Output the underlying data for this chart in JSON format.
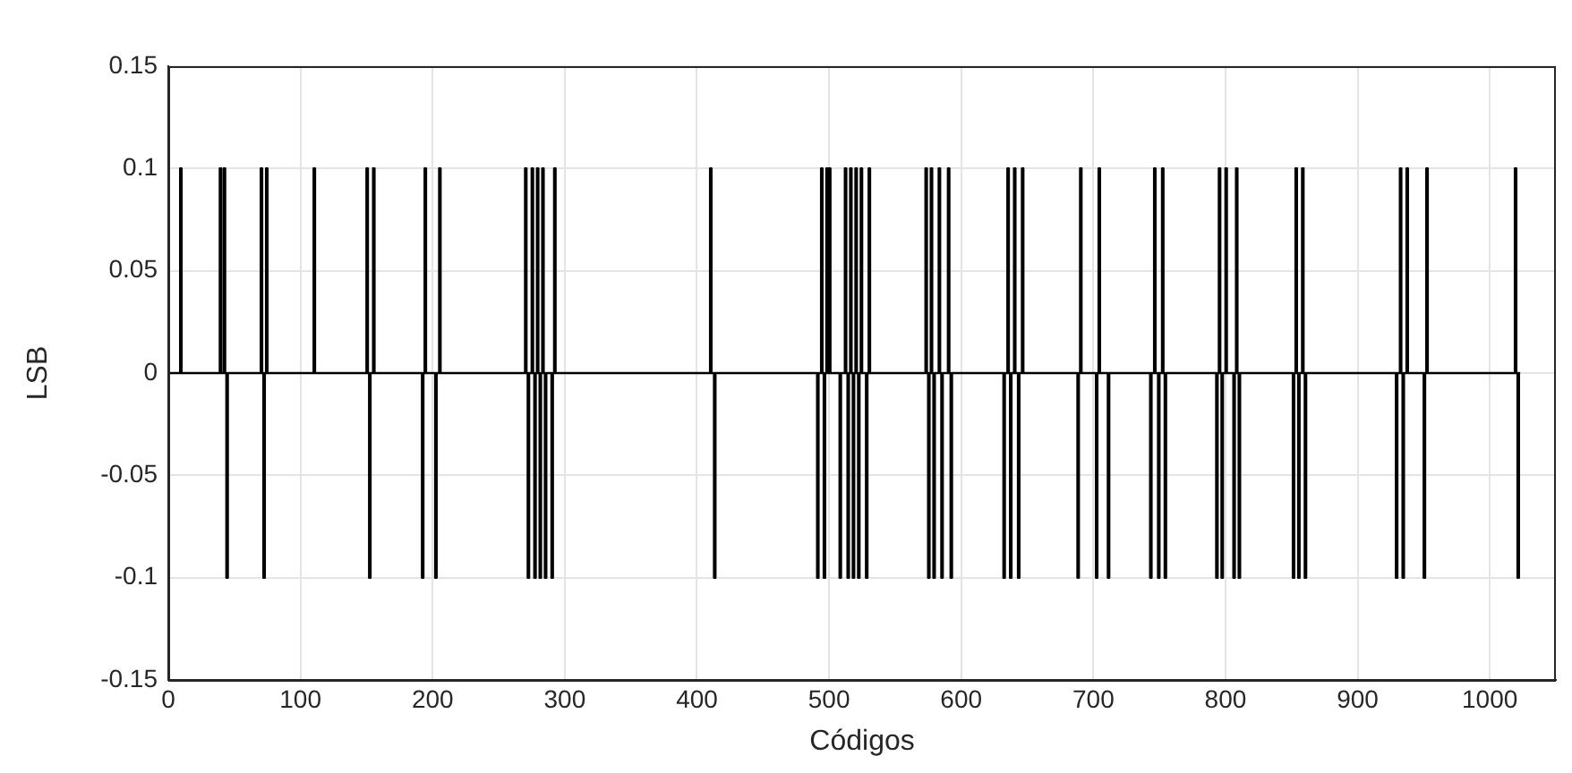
{
  "chart_data": {
    "type": "step",
    "xlabel": "Códigos",
    "ylabel": "LSB",
    "x": [
      0,
      9,
      10,
      39,
      40,
      42,
      43,
      44,
      45,
      70,
      71,
      72,
      73,
      74,
      75,
      110,
      111,
      150,
      151,
      152,
      153,
      155,
      156,
      192,
      193,
      194,
      195,
      202,
      203,
      205,
      206,
      270,
      271,
      272,
      273,
      275,
      276,
      277,
      278,
      279,
      280,
      281,
      282,
      283,
      284,
      285,
      286,
      290,
      291,
      292,
      293,
      410,
      411,
      413,
      414,
      491,
      492,
      494,
      495,
      496,
      497,
      498,
      499,
      500,
      501,
      508,
      509,
      512,
      513,
      514,
      515,
      516,
      517,
      518,
      519,
      520,
      521,
      522,
      523,
      524,
      525,
      528,
      529,
      530,
      531,
      573,
      574,
      575,
      576,
      577,
      578,
      579,
      580,
      583,
      584,
      585,
      586,
      590,
      591,
      592,
      593,
      632,
      633,
      635,
      636,
      637,
      638,
      640,
      641,
      643,
      644,
      646,
      647,
      688,
      689,
      690,
      691,
      702,
      703,
      704,
      705,
      711,
      712,
      743,
      744,
      746,
      747,
      749,
      750,
      752,
      753,
      754,
      755,
      793,
      794,
      795,
      796,
      797,
      798,
      800,
      801,
      806,
      807,
      808,
      809,
      810,
      811,
      851,
      852,
      853,
      854,
      855,
      856,
      858,
      859,
      860,
      861,
      929,
      930,
      932,
      933,
      934,
      935,
      937,
      938,
      950,
      951,
      952,
      953,
      1019,
      1020,
      1021,
      1022,
      1023
    ],
    "series": [
      {
        "color": "#000000",
        "values": [
          0,
          0.1,
          0,
          0.1,
          0,
          0.1,
          0,
          -0.1,
          0,
          0.1,
          0,
          -0.1,
          0,
          0.1,
          0,
          0.1,
          0,
          0.1,
          0,
          -0.1,
          0,
          0.1,
          0,
          -0.1,
          0,
          0.1,
          0,
          -0.1,
          0,
          0.1,
          0,
          0.1,
          0,
          -0.1,
          0,
          0.1,
          0,
          -0.1,
          0,
          0.1,
          0,
          -0.1,
          0,
          0.1,
          0,
          -0.1,
          0,
          -0.1,
          0,
          0.1,
          0,
          0.1,
          0,
          -0.1,
          0,
          -0.1,
          0,
          0.1,
          0,
          -0.1,
          0,
          0.1,
          0,
          0.1,
          0,
          -0.1,
          0,
          0.1,
          0,
          -0.1,
          0,
          0.1,
          0,
          -0.1,
          0,
          0.1,
          0,
          -0.1,
          0,
          0.1,
          0,
          -0.1,
          0,
          0.1,
          0,
          0.1,
          0,
          -0.1,
          0,
          0.1,
          0,
          -0.1,
          0,
          0.1,
          0,
          -0.1,
          0,
          0.1,
          0,
          -0.1,
          0,
          -0.1,
          0,
          0.1,
          0,
          -0.1,
          0,
          0.1,
          0,
          -0.1,
          0,
          0.1,
          0,
          -0.1,
          0,
          0.1,
          0,
          -0.1,
          0,
          0.1,
          0,
          -0.1,
          0,
          -0.1,
          0,
          0.1,
          0,
          -0.1,
          0,
          0.1,
          0,
          -0.1,
          0,
          -0.1,
          0,
          0.1,
          0,
          -0.1,
          0,
          0.1,
          0,
          -0.1,
          0,
          0.1,
          0,
          -0.1,
          0,
          -0.1,
          0,
          0.1,
          0,
          -0.1,
          0,
          0.1,
          0,
          -0.1,
          0,
          -0.1,
          0,
          0.1,
          0,
          -0.1,
          0,
          0.1,
          0,
          -0.1,
          0,
          0.1,
          0,
          0.1,
          0,
          -0.1,
          0,
          0
        ]
      }
    ],
    "xlim": [
      0,
      1050
    ],
    "xticks": [
      0,
      100,
      200,
      300,
      400,
      500,
      600,
      700,
      800,
      900,
      1000
    ],
    "ylim": [
      -0.15,
      0.15
    ],
    "yticks": [
      -0.15,
      -0.1,
      -0.05,
      0,
      0.05,
      0.1,
      0.15
    ],
    "grid": true,
    "legend": false,
    "marker": "none",
    "line_style": "solid"
  }
}
